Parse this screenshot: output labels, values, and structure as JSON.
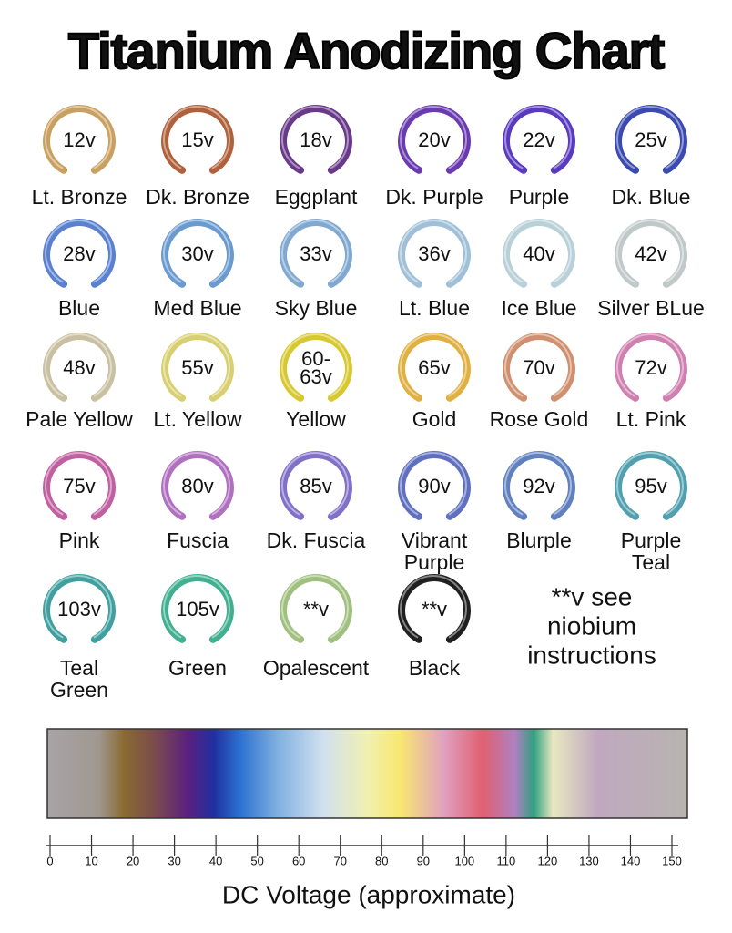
{
  "title": "Titanium Anodizing Chart",
  "rings": [
    {
      "voltage": "12v",
      "name": "Lt. Bronze",
      "color": "#c9a060"
    },
    {
      "voltage": "15v",
      "name": "Dk. Bronze",
      "color": "#b0603a"
    },
    {
      "voltage": "18v",
      "name": "Eggplant",
      "color": "#6a3a8a"
    },
    {
      "voltage": "20v",
      "name": "Dk. Purple",
      "color": "#6a3ab0"
    },
    {
      "voltage": "22v",
      "name": "Purple",
      "color": "#5a3ac0"
    },
    {
      "voltage": "25v",
      "name": "Dk. Blue",
      "color": "#3a4ab0"
    },
    {
      "voltage": "28v",
      "name": "Blue",
      "color": "#5a80d0"
    },
    {
      "voltage": "30v",
      "name": "Med Blue",
      "color": "#6a9ad0"
    },
    {
      "voltage": "33v",
      "name": "Sky Blue",
      "color": "#80a8d0"
    },
    {
      "voltage": "36v",
      "name": "Lt. Blue",
      "color": "#a0c0d8"
    },
    {
      "voltage": "40v",
      "name": "Ice Blue",
      "color": "#b8d0d8"
    },
    {
      "voltage": "42v",
      "name": "Silver BLue",
      "color": "#c0c8c8"
    },
    {
      "voltage": "48v",
      "name": "Pale Yellow",
      "color": "#c8c0a0"
    },
    {
      "voltage": "55v",
      "name": "Lt. Yellow",
      "color": "#d8d070"
    },
    {
      "voltage": [
        "60-",
        "63v"
      ],
      "name": "Yellow",
      "color": "#d8c830"
    },
    {
      "voltage": "65v",
      "name": "Gold",
      "color": "#e0b040"
    },
    {
      "voltage": "70v",
      "name": "Rose Gold",
      "color": "#d09070"
    },
    {
      "voltage": "72v",
      "name": "Lt. Pink",
      "color": "#d080b0"
    },
    {
      "voltage": "75v",
      "name": "Pink",
      "color": "#c060a0"
    },
    {
      "voltage": "80v",
      "name": "Fuscia",
      "color": "#b070c0"
    },
    {
      "voltage": "85v",
      "name": "Dk. Fuscia",
      "color": "#8070c8"
    },
    {
      "voltage": "90v",
      "name": [
        "Vibrant",
        "Purple"
      ],
      "color": "#6070c0"
    },
    {
      "voltage": "92v",
      "name": "Blurple",
      "color": "#6080c0"
    },
    {
      "voltage": "95v",
      "name": [
        "Purple",
        "Teal"
      ],
      "color": "#50a0b0"
    },
    {
      "voltage": "103v",
      "name": [
        "Teal",
        "Green"
      ],
      "color": "#40a0a0"
    },
    {
      "voltage": "105v",
      "name": "Green",
      "color": "#40b090"
    },
    {
      "voltage": "**v",
      "name": "Opalescent",
      "color": "#a0c080"
    },
    {
      "voltage": "**v",
      "name": "Black",
      "color": "#202020"
    }
  ],
  "note": [
    "**v see",
    "niobium",
    "instructions"
  ],
  "axis": {
    "label": "DC Voltage (approximate)",
    "lim": [
      0,
      150
    ],
    "ticks": [
      0,
      10,
      20,
      30,
      40,
      50,
      60,
      70,
      80,
      90,
      100,
      110,
      120,
      130,
      140,
      150
    ]
  }
}
